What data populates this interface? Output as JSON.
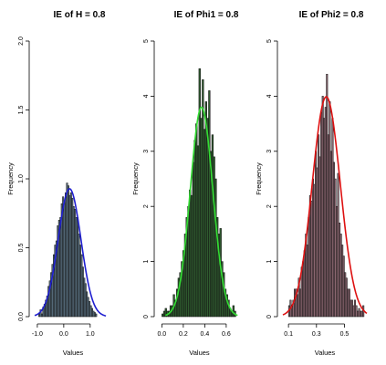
{
  "chart_data": [
    {
      "type": "histogram",
      "title": "IE of H = 0.8",
      "xlabel": "Values",
      "ylabel": "Frequency",
      "xticks": [
        -1.0,
        0.0,
        1.0
      ],
      "xtick_labels": [
        "-1.0",
        "0.0",
        "1.0"
      ],
      "yticks": [
        0.0,
        0.5,
        1.0,
        1.5,
        2.0
      ],
      "ytick_labels": [
        "0.0",
        "0.5",
        "1.0",
        "1.5",
        "2.0"
      ],
      "xlim": [
        -1.1,
        1.8
      ],
      "ylim": [
        0,
        2.0
      ],
      "bar_color": "#5a7080",
      "curve_color": "#1f1fd0",
      "bins": [
        -0.95,
        -0.9,
        -0.85,
        -0.8,
        -0.75,
        -0.7,
        -0.65,
        -0.6,
        -0.55,
        -0.5,
        -0.45,
        -0.4,
        -0.35,
        -0.3,
        -0.25,
        -0.2,
        -0.15,
        -0.1,
        -0.05,
        0.0,
        0.05,
        0.1,
        0.15,
        0.2,
        0.25,
        0.3,
        0.35,
        0.4,
        0.45,
        0.5,
        0.55,
        0.6,
        0.65,
        0.7,
        0.75,
        0.8,
        0.85,
        0.9,
        0.95,
        1.0,
        1.05,
        1.1,
        1.15,
        1.2
      ],
      "density": [
        0.02,
        0.05,
        0.02,
        0.07,
        0.09,
        0.12,
        0.15,
        0.22,
        0.26,
        0.32,
        0.38,
        0.45,
        0.52,
        0.55,
        0.66,
        0.7,
        0.72,
        0.82,
        0.87,
        0.82,
        0.9,
        0.97,
        0.95,
        0.88,
        0.9,
        0.86,
        0.8,
        0.78,
        0.72,
        0.72,
        0.6,
        0.52,
        0.45,
        0.36,
        0.28,
        0.24,
        0.18,
        0.14,
        0.11,
        0.08,
        0.06,
        0.04,
        0.03,
        0.02
      ],
      "curve": {
        "mean": 0.22,
        "sd": 0.43
      }
    },
    {
      "type": "histogram",
      "title": "IE of Phi1 = 0.8",
      "xlabel": "Values",
      "ylabel": "Frequency",
      "xticks": [
        0.0,
        0.2,
        0.4,
        0.6
      ],
      "xtick_labels": [
        "0.0",
        "0.2",
        "0.4",
        "0.6"
      ],
      "yticks": [
        0,
        1,
        2,
        3,
        4,
        5
      ],
      "ytick_labels": [
        "0",
        "1",
        "2",
        "3",
        "4",
        "5"
      ],
      "xlim": [
        -0.02,
        0.72
      ],
      "ylim": [
        0,
        5
      ],
      "bar_color": "#2f5a2f",
      "curve_color": "#33dd33",
      "bins": [
        0.0,
        0.015,
        0.03,
        0.045,
        0.06,
        0.075,
        0.09,
        0.105,
        0.12,
        0.135,
        0.15,
        0.165,
        0.18,
        0.195,
        0.21,
        0.225,
        0.24,
        0.255,
        0.27,
        0.285,
        0.3,
        0.315,
        0.33,
        0.345,
        0.36,
        0.375,
        0.39,
        0.405,
        0.42,
        0.435,
        0.45,
        0.465,
        0.48,
        0.495,
        0.51,
        0.525,
        0.54,
        0.555,
        0.57,
        0.585,
        0.6,
        0.615,
        0.63,
        0.645,
        0.66,
        0.675
      ],
      "density": [
        0.05,
        0.1,
        0.15,
        0.1,
        0.1,
        0.2,
        0.2,
        0.4,
        0.3,
        0.5,
        0.7,
        0.8,
        1.0,
        1.2,
        1.5,
        1.8,
        2.0,
        2.3,
        2.2,
        2.8,
        3.2,
        3.5,
        3.1,
        4.5,
        3.6,
        4.3,
        3.4,
        3.9,
        3.6,
        4.1,
        3.0,
        3.3,
        2.9,
        2.5,
        1.8,
        1.5,
        1.6,
        1.0,
        0.8,
        0.5,
        0.4,
        0.3,
        0.15,
        0.1,
        0.2,
        0.1
      ],
      "curve": {
        "mean": 0.37,
        "sd": 0.105
      }
    },
    {
      "type": "histogram",
      "title": "IE of Phi2 = 0.8",
      "xlabel": "Values",
      "ylabel": "Frequency",
      "xticks": [
        0.1,
        0.3,
        0.5
      ],
      "xtick_labels": [
        "0.1",
        "0.3",
        "0.5"
      ],
      "yticks": [
        0,
        1,
        2,
        3,
        4,
        5
      ],
      "ytick_labels": [
        "0",
        "1",
        "2",
        "3",
        "4",
        "5"
      ],
      "xlim": [
        0.06,
        0.66
      ],
      "ylim": [
        0,
        5
      ],
      "bar_color": "#8a6670",
      "curve_color": "#dd1111",
      "bins": [
        0.1,
        0.11,
        0.12,
        0.13,
        0.14,
        0.15,
        0.16,
        0.17,
        0.18,
        0.19,
        0.2,
        0.21,
        0.22,
        0.23,
        0.24,
        0.25,
        0.26,
        0.27,
        0.28,
        0.29,
        0.3,
        0.31,
        0.32,
        0.33,
        0.34,
        0.35,
        0.36,
        0.37,
        0.38,
        0.39,
        0.4,
        0.41,
        0.42,
        0.43,
        0.44,
        0.45,
        0.46,
        0.47,
        0.48,
        0.49,
        0.5,
        0.51,
        0.52,
        0.53,
        0.54,
        0.55,
        0.56,
        0.57,
        0.58,
        0.59,
        0.6,
        0.61,
        0.62,
        0.63
      ],
      "density": [
        0.2,
        0.3,
        0.2,
        0.3,
        0.5,
        0.5,
        0.4,
        0.7,
        0.5,
        0.9,
        1.0,
        1.2,
        1.5,
        1.3,
        1.8,
        2.2,
        2.1,
        2.5,
        2.4,
        3.0,
        2.7,
        3.3,
        2.9,
        3.7,
        4.0,
        3.6,
        3.8,
        4.4,
        3.3,
        3.9,
        3.0,
        3.6,
        2.8,
        2.5,
        2.0,
        2.6,
        1.7,
        1.5,
        1.3,
        1.1,
        0.8,
        0.7,
        0.5,
        0.5,
        0.3,
        0.3,
        0.2,
        0.3,
        0.2,
        0.1,
        0.15,
        0.1,
        0.1,
        0.2
      ],
      "curve": {
        "mean": 0.37,
        "sd": 0.1
      }
    }
  ]
}
